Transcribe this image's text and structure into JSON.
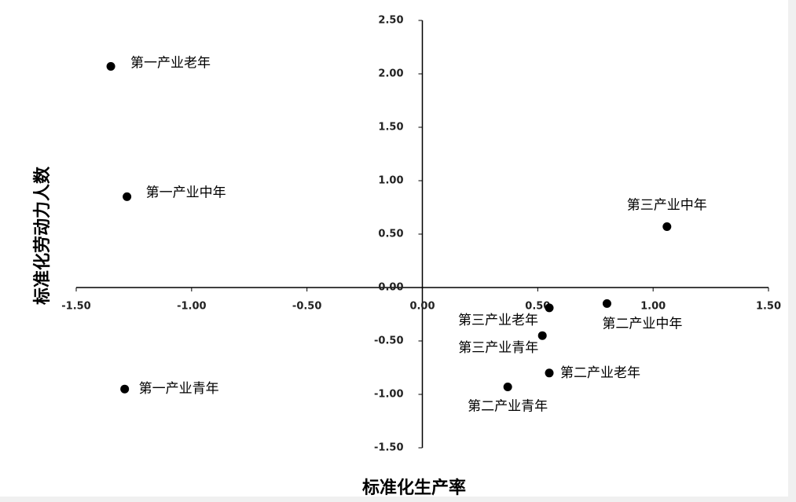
{
  "chart_data": {
    "type": "scatter",
    "x_label": "标准化生产率",
    "y_label": "标准化劳动力人数",
    "xlim": [
      -1.5,
      1.5
    ],
    "ylim": [
      -1.5,
      2.5
    ],
    "xticks": [
      {
        "value": -1.5,
        "label": "-1.50"
      },
      {
        "value": -1,
        "label": "-1.00"
      },
      {
        "value": -0.5,
        "label": "-0.50"
      },
      {
        "value": 0,
        "label": "0.00"
      },
      {
        "value": 0.5,
        "label": "0.50"
      },
      {
        "value": 1,
        "label": "1.00"
      },
      {
        "value": 1.5,
        "label": "1.50"
      }
    ],
    "yticks": [
      {
        "value": -1.5,
        "label": "-1.50"
      },
      {
        "value": -1,
        "label": "-1.00"
      },
      {
        "value": -0.5,
        "label": "-0.50"
      },
      {
        "value": 0,
        "label": "0.00"
      },
      {
        "value": 0.5,
        "label": "0.50"
      },
      {
        "value": 1,
        "label": "1.00"
      },
      {
        "value": 1.5,
        "label": "1.50"
      },
      {
        "value": 2,
        "label": "2.00"
      },
      {
        "value": 2.5,
        "label": "2.50"
      }
    ],
    "color": "#000000",
    "labels": [
      "第一产业老年",
      "第一产业中年",
      "第一产业青年",
      "第三产业中年",
      "第二产业中年",
      "第三产业老年",
      "第三产业青年",
      "第二产业老年",
      "第二产业青年"
    ],
    "x": [
      -1.35,
      -1.28,
      -1.29,
      1.06,
      0.8,
      0.55,
      0.52,
      0.55,
      0.37
    ],
    "y": [
      2.07,
      0.85,
      -0.95,
      0.57,
      -0.15,
      -0.19,
      -0.45,
      -0.8,
      -0.93
    ]
  }
}
